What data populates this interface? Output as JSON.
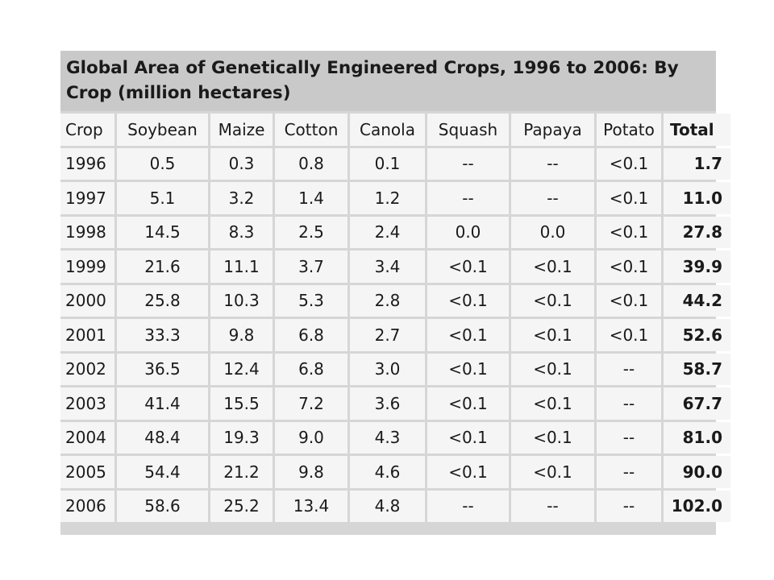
{
  "table": {
    "title": "Global Area of Genetically Engineered Crops, 1996 to 2006: By Crop (million hectares)",
    "headers": [
      "Crop",
      "Soybean",
      "Maize",
      "Cotton",
      "Canola",
      "Squash",
      "Papaya",
      "Potato",
      "Total"
    ],
    "rows": [
      [
        "1996",
        "0.5",
        "0.3",
        "0.8",
        "0.1",
        "--",
        "--",
        "<0.1",
        "1.7"
      ],
      [
        "1997",
        "5.1",
        "3.2",
        "1.4",
        "1.2",
        "--",
        "--",
        "<0.1",
        "11.0"
      ],
      [
        "1998",
        "14.5",
        "8.3",
        "2.5",
        "2.4",
        "0.0",
        "0.0",
        "<0.1",
        "27.8"
      ],
      [
        "1999",
        "21.6",
        "11.1",
        "3.7",
        "3.4",
        "<0.1",
        "<0.1",
        "<0.1",
        "39.9"
      ],
      [
        "2000",
        "25.8",
        "10.3",
        "5.3",
        "2.8",
        "<0.1",
        "<0.1",
        "<0.1",
        "44.2"
      ],
      [
        "2001",
        "33.3",
        "9.8",
        "6.8",
        "2.7",
        "<0.1",
        "<0.1",
        "<0.1",
        "52.6"
      ],
      [
        "2002",
        "36.5",
        "12.4",
        "6.8",
        "3.0",
        "<0.1",
        "<0.1",
        "--",
        "58.7"
      ],
      [
        "2003",
        "41.4",
        "15.5",
        "7.2",
        "3.6",
        "<0.1",
        "<0.1",
        "--",
        "67.7"
      ],
      [
        "2004",
        "48.4",
        "19.3",
        "9.0",
        "4.3",
        "<0.1",
        "<0.1",
        "--",
        "81.0"
      ],
      [
        "2005",
        "54.4",
        "21.2",
        "9.8",
        "4.6",
        "<0.1",
        "<0.1",
        "--",
        "90.0"
      ],
      [
        "2006",
        "58.6",
        "25.2",
        "13.4",
        "4.8",
        "--",
        "--",
        "--",
        "102.0"
      ]
    ]
  }
}
